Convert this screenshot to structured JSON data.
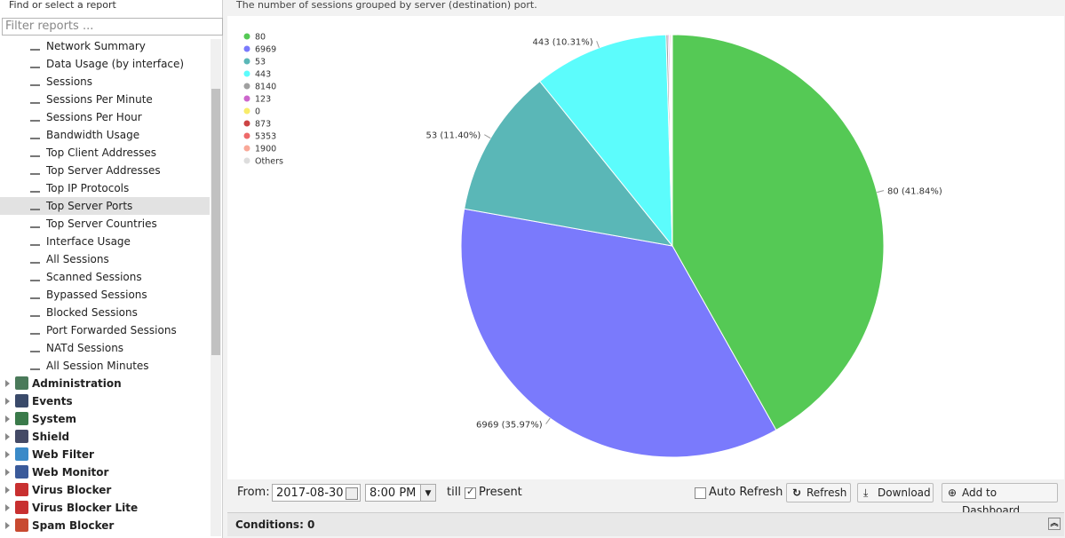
{
  "sidebar": {
    "label": "Find or select a report",
    "filter_placeholder": "Filter reports ...",
    "reports": [
      "Network Summary",
      "Data Usage (by interface)",
      "Sessions",
      "Sessions Per Minute",
      "Sessions Per Hour",
      "Bandwidth Usage",
      "Top Client Addresses",
      "Top Server Addresses",
      "Top IP Protocols",
      "Top Server Ports",
      "Top Server Countries",
      "Interface Usage",
      "All Sessions",
      "Scanned Sessions",
      "Bypassed Sessions",
      "Blocked Sessions",
      "Port Forwarded Sessions",
      "NATd Sessions",
      "All Session Minutes"
    ],
    "selected": "Top Server Ports",
    "groups": [
      "Administration",
      "Events",
      "System",
      "Shield",
      "Web Filter",
      "Web Monitor",
      "Virus Blocker",
      "Virus Blocker Lite",
      "Spam Blocker"
    ]
  },
  "description": "The number of sessions grouped by server (destination) port.",
  "chart_data": {
    "type": "pie",
    "legend": "top-left",
    "categories": [
      "80",
      "6969",
      "53",
      "443",
      "8140",
      "123",
      "0",
      "873",
      "5353",
      "1900",
      "Others"
    ],
    "values": [
      41.84,
      35.97,
      11.4,
      10.31,
      0.15,
      0.1,
      0.05,
      0.08,
      0.05,
      0.03,
      0.02
    ],
    "value_labels": [
      "80 (41.84%)",
      "6969 (35.97%)",
      "53 (11.40%)",
      "443 (10.31%)",
      null,
      null,
      null,
      null,
      null,
      null,
      null
    ],
    "colors": [
      "#55c955",
      "#7a7afc",
      "#5ab7b7",
      "#5cfcfc",
      "#a0a0a0",
      "#cc66cc",
      "#f8ec6a",
      "#cc4444",
      "#ee6a6a",
      "#f9a898",
      "#dddddd"
    ]
  },
  "toolbar": {
    "from_label": "From:",
    "date": "2017-08-30",
    "time": "8:00 PM",
    "till": "till",
    "present": "Present",
    "auto_refresh": "Auto Refresh",
    "refresh": "Refresh",
    "download": "Download",
    "add_to_dashboard": "Add to Dashboard"
  },
  "conditions": "Conditions: 0"
}
